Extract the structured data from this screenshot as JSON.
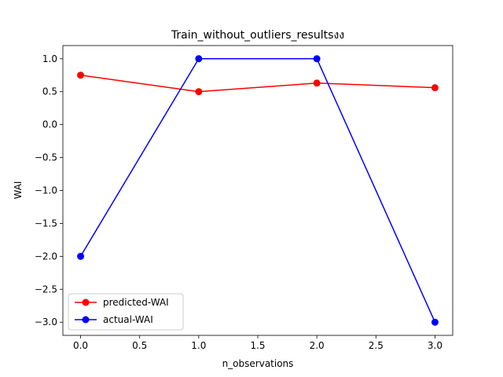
{
  "chart_data": {
    "type": "line",
    "title": "Train_without_outliers_resultsงง",
    "xlabel": "n_observations",
    "ylabel": "WAI",
    "x": [
      0,
      1,
      2,
      3
    ],
    "xlim": [
      -0.15,
      3.15
    ],
    "ylim": [
      -3.2,
      1.2
    ],
    "xticks": [
      0.0,
      0.5,
      1.0,
      1.5,
      2.0,
      2.5,
      3.0
    ],
    "xtick_labels": [
      "0.0",
      "0.5",
      "1.0",
      "1.5",
      "2.0",
      "2.5",
      "3.0"
    ],
    "yticks": [
      1.0,
      0.5,
      0.0,
      -0.5,
      -1.0,
      -1.5,
      -2.0,
      -2.5,
      -3.0
    ],
    "ytick_labels": [
      "1.0",
      "0.5",
      "0.0",
      "−0.5",
      "−1.0",
      "−1.5",
      "−2.0",
      "−2.5",
      "−3.0"
    ],
    "grid": false,
    "legend_position": "lower-left",
    "series": [
      {
        "name": "predicted-WAI",
        "color": "#ff0000",
        "marker": "circle",
        "values": [
          0.75,
          0.5,
          0.63,
          0.56
        ]
      },
      {
        "name": "actual-WAI",
        "color": "#0000ff",
        "marker": "circle",
        "values": [
          -2.0,
          1.0,
          1.0,
          -3.0
        ]
      }
    ]
  }
}
